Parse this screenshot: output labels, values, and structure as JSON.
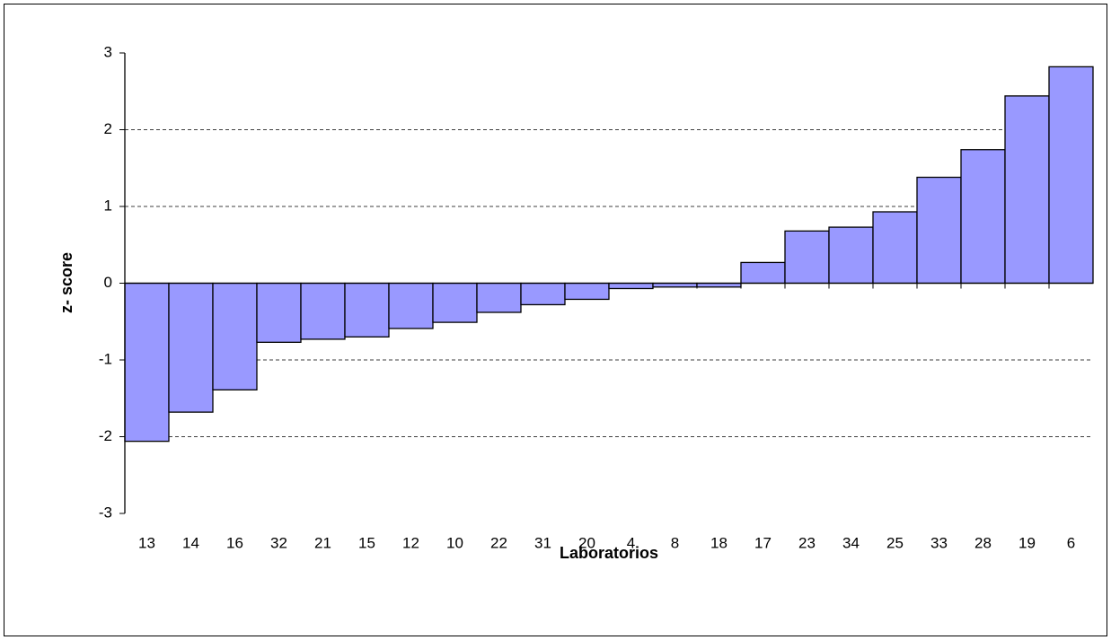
{
  "chart_data": {
    "type": "bar",
    "x_label": "Laboratorios",
    "y_label": "z- score",
    "categories": [
      "13",
      "14",
      "16",
      "32",
      "21",
      "15",
      "12",
      "10",
      "22",
      "31",
      "20",
      "4",
      "8",
      "18",
      "17",
      "23",
      "34",
      "25",
      "33",
      "28",
      "19",
      "6"
    ],
    "values": [
      -2.06,
      -1.68,
      -1.39,
      -0.77,
      -0.73,
      -0.7,
      -0.59,
      -0.51,
      -0.38,
      -0.28,
      -0.21,
      -0.07,
      -0.05,
      -0.05,
      0.27,
      0.68,
      0.73,
      0.93,
      1.38,
      1.74,
      2.44,
      2.82
    ],
    "color": "#9999ff",
    "ylim": [
      -3,
      3
    ],
    "yticks": [
      -3,
      -2,
      -1,
      0,
      1,
      2,
      3
    ],
    "grid": true
  }
}
